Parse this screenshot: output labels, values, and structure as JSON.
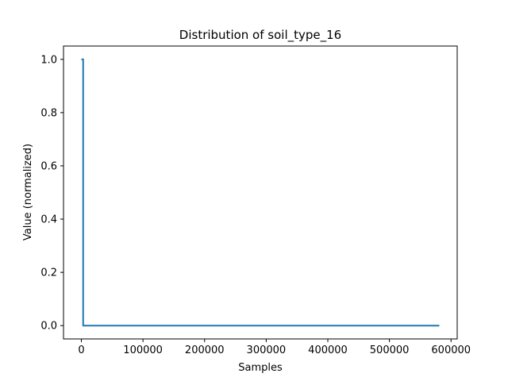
{
  "chart_data": {
    "type": "line",
    "title": "Distribution of soil_type_16",
    "xlabel": "Samples",
    "ylabel": "Value (normalized)",
    "xlim": [
      -29000,
      610000
    ],
    "ylim": [
      -0.05,
      1.05
    ],
    "xticks": [
      0,
      100000,
      200000,
      300000,
      400000,
      500000,
      600000
    ],
    "xtick_labels": [
      "0",
      "100000",
      "200000",
      "300000",
      "400000",
      "500000",
      "600000"
    ],
    "yticks": [
      0.0,
      0.2,
      0.4,
      0.6,
      0.8,
      1.0
    ],
    "ytick_labels": [
      "0.0",
      "0.2",
      "0.4",
      "0.6",
      "0.8",
      "1.0"
    ],
    "grid": false,
    "series": [
      {
        "color": "#1f77b4",
        "x": [
          0,
          2900,
          2900,
          581000
        ],
        "y": [
          1.0,
          1.0,
          0.0,
          0.0
        ]
      }
    ]
  }
}
